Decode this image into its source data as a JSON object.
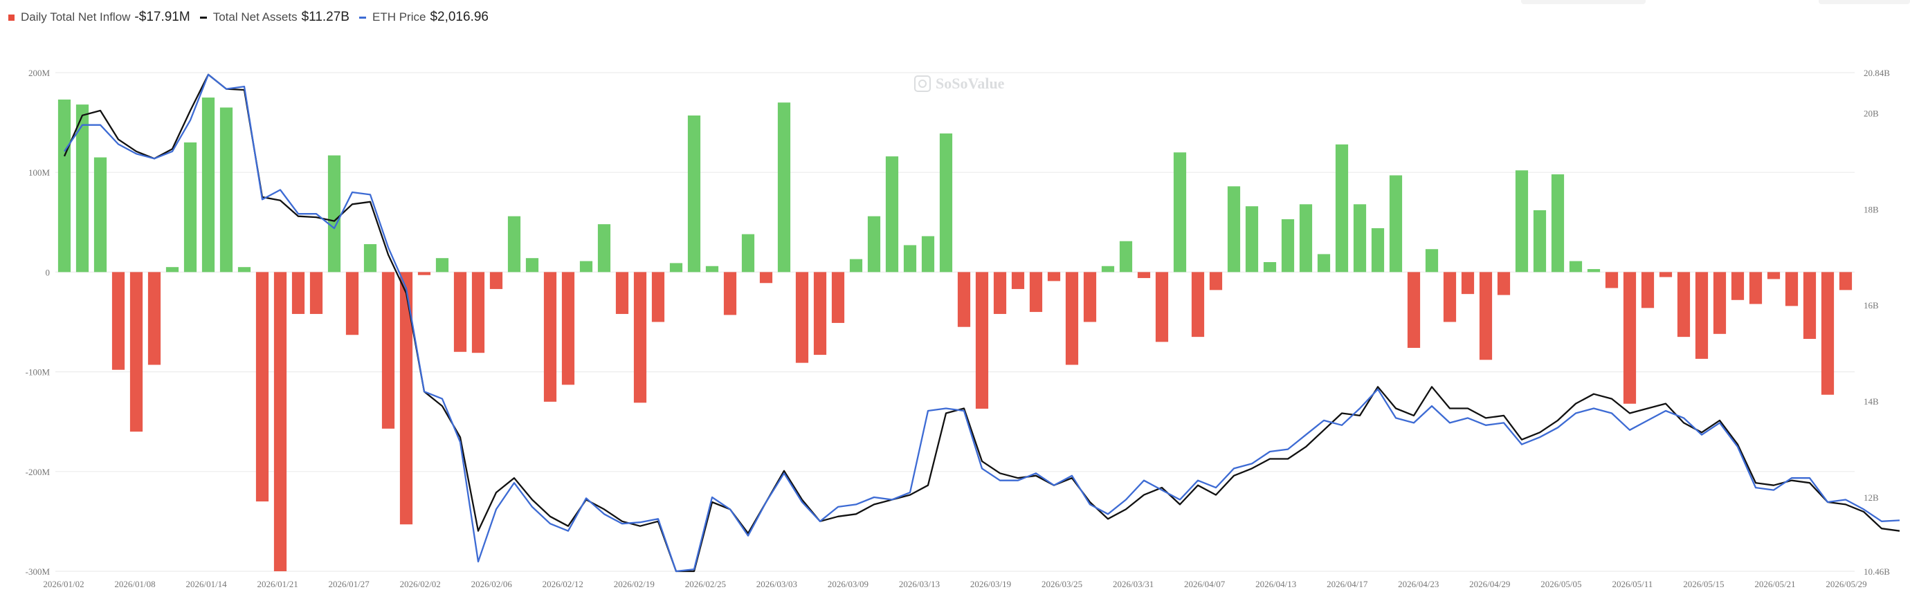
{
  "legend": {
    "inflow": {
      "label": "Daily Total Net Inflow",
      "value": "-$17.91M",
      "color": "#e74c3c"
    },
    "assets": {
      "label": "Total Net Assets",
      "value": "$11.27B",
      "color": "#111111"
    },
    "price": {
      "label": "ETH Price",
      "value": "$2,016.96",
      "color": "#3d6bd4"
    }
  },
  "watermark": "SoSoValue",
  "colors": {
    "positive": "#6ecc6a",
    "negative": "#e8584a",
    "grid": "#ececec",
    "axis_text": "#777777"
  },
  "chart_data": {
    "type": "bar",
    "x_tick_labels": [
      "2026/01/02",
      "2026/01/08",
      "2026/01/14",
      "2026/01/21",
      "2026/01/27",
      "2026/02/02",
      "2026/02/06",
      "2026/02/12",
      "2026/02/19",
      "2026/02/25",
      "2026/03/03",
      "2026/03/09",
      "2026/03/13",
      "2026/03/19",
      "2026/03/25",
      "2026/03/31",
      "2026/04/07",
      "2026/04/13",
      "2026/04/17",
      "2026/04/23",
      "2026/04/29",
      "2026/05/05",
      "2026/05/11",
      "2026/05/15",
      "2026/05/21",
      "2026/05/29"
    ],
    "y_left": {
      "ticks": [
        "200M",
        "100M",
        "0",
        "-100M",
        "-200M",
        "-300M"
      ],
      "tick_values": [
        200,
        100,
        0,
        -100,
        -200,
        -300
      ],
      "range": [
        -300,
        200
      ],
      "unit": "M USD"
    },
    "y_right": {
      "ticks": [
        "20.84B",
        "20B",
        "18B",
        "16B",
        "14B",
        "12B",
        "10.46B"
      ],
      "tick_values": [
        20.84,
        20,
        18,
        16,
        14,
        12,
        10.46
      ],
      "range": [
        10.46,
        20.84
      ],
      "unit": "B USD"
    },
    "grid": true,
    "series": [
      {
        "name": "Daily Total Net Inflow",
        "kind": "bar",
        "axis": "left",
        "values": [
          173,
          168,
          115,
          -98,
          -160,
          -93,
          5,
          130,
          175,
          165,
          5,
          -230,
          -300,
          -42,
          -42,
          117,
          -63,
          28,
          -157,
          -253,
          -3,
          14,
          -80,
          -81,
          -17,
          56,
          14,
          -130,
          -113,
          11,
          48,
          -42,
          -131,
          -50,
          9,
          157,
          6,
          -43,
          38,
          -11,
          170,
          -91,
          -83,
          -51,
          13,
          56,
          116,
          27,
          36,
          139,
          -55,
          -137,
          -42,
          -17,
          -40,
          -9,
          -93,
          -50,
          6,
          31,
          -6,
          -70,
          120,
          -65,
          -18,
          86,
          66,
          10,
          53,
          68,
          18,
          128,
          68,
          44,
          97,
          -76,
          23,
          -50,
          -22,
          -88,
          -23,
          102,
          62,
          98,
          11,
          3,
          -16,
          -132,
          -36,
          -5,
          -65,
          -87,
          -62,
          -28,
          -32,
          -7,
          -34,
          -67,
          -123,
          -18
        ]
      },
      {
        "name": "Total Net Assets",
        "kind": "line",
        "axis": "right",
        "color": "#111111",
        "values": [
          19.1,
          19.95,
          20.05,
          19.45,
          19.2,
          19.05,
          19.25,
          20.05,
          20.8,
          20.5,
          20.48,
          18.25,
          18.18,
          17.85,
          17.83,
          17.75,
          18.1,
          18.15,
          17.05,
          16.25,
          14.2,
          13.9,
          13.25,
          11.3,
          12.1,
          12.4,
          11.95,
          11.6,
          11.4,
          11.95,
          11.75,
          11.5,
          11.4,
          11.5,
          10.46,
          10.46,
          11.9,
          11.75,
          11.25,
          11.9,
          12.55,
          11.95,
          11.5,
          11.6,
          11.65,
          11.85,
          11.95,
          12.05,
          12.25,
          13.75,
          13.85,
          12.75,
          12.5,
          12.4,
          12.45,
          12.25,
          12.4,
          11.9,
          11.55,
          11.75,
          12.05,
          12.2,
          11.85,
          12.25,
          12.05,
          12.45,
          12.6,
          12.8,
          12.8,
          13.05,
          13.4,
          13.75,
          13.7,
          14.3,
          13.85,
          13.7,
          14.3,
          13.85,
          13.85,
          13.65,
          13.7,
          13.2,
          13.35,
          13.6,
          13.95,
          14.15,
          14.05,
          13.75,
          13.85,
          13.95,
          13.55,
          13.35,
          13.6,
          13.1,
          12.3,
          12.25,
          12.35,
          12.3,
          11.9,
          11.85,
          11.7,
          11.35,
          11.3
        ]
      },
      {
        "name": "ETH Price",
        "kind": "line",
        "axis": "right",
        "color": "#3d6bd4",
        "values": [
          19.2,
          19.75,
          19.75,
          19.35,
          19.15,
          19.05,
          19.2,
          19.85,
          20.8,
          20.5,
          20.55,
          18.2,
          18.4,
          17.9,
          17.9,
          17.6,
          18.35,
          18.3,
          17.2,
          16.35,
          14.2,
          14.05,
          13.15,
          10.66,
          11.75,
          12.3,
          11.8,
          11.45,
          11.3,
          11.98,
          11.65,
          11.45,
          11.48,
          11.55,
          10.46,
          10.5,
          12.0,
          11.75,
          11.2,
          11.9,
          12.5,
          11.9,
          11.5,
          11.8,
          11.85,
          12.0,
          11.95,
          12.1,
          13.8,
          13.85,
          13.8,
          12.6,
          12.35,
          12.35,
          12.5,
          12.25,
          12.45,
          11.85,
          11.65,
          11.95,
          12.35,
          12.15,
          11.95,
          12.35,
          12.2,
          12.6,
          12.7,
          12.95,
          13.0,
          13.3,
          13.6,
          13.5,
          13.85,
          14.25,
          13.65,
          13.55,
          13.9,
          13.55,
          13.65,
          13.5,
          13.55,
          13.1,
          13.25,
          13.45,
          13.75,
          13.85,
          13.75,
          13.4,
          13.6,
          13.8,
          13.65,
          13.3,
          13.55,
          13.05,
          12.2,
          12.15,
          12.4,
          12.4,
          11.9,
          11.95,
          11.75,
          11.5,
          11.52
        ]
      }
    ]
  }
}
